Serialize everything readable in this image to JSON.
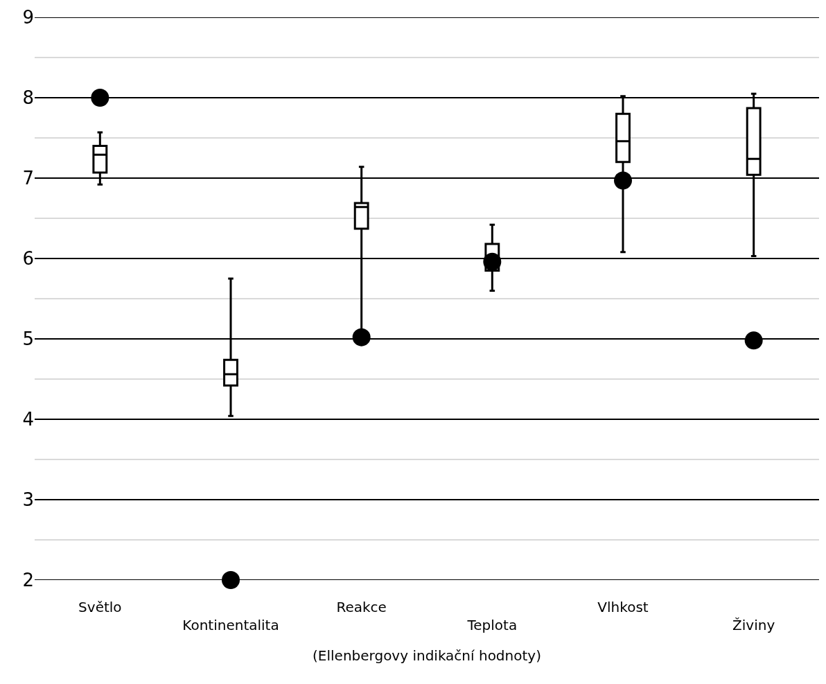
{
  "chart_data": {
    "type": "box",
    "xlabel": "(Ellenbergovy indikační hodnoty)",
    "categories": [
      "Světlo",
      "Kontinentalita",
      "Reakce",
      "Teplota",
      "Vlhkost",
      "Živiny"
    ],
    "series": [
      {
        "color": "#000000",
        "boxes": [
          {
            "low": 6.92,
            "q1": 7.07,
            "median": 7.29,
            "q3": 7.4,
            "high": 7.57
          },
          {
            "low": 4.04,
            "q1": 4.42,
            "median": 4.56,
            "q3": 4.74,
            "high": 5.75
          },
          {
            "low": 5.0,
            "q1": 6.37,
            "median": 6.64,
            "q3": 6.69,
            "high": 7.14
          },
          {
            "low": 5.6,
            "q1": 5.85,
            "median": 5.96,
            "q3": 6.18,
            "high": 6.42
          },
          {
            "low": 6.08,
            "q1": 7.2,
            "median": 7.46,
            "q3": 7.8,
            "high": 8.02
          },
          {
            "low": 6.03,
            "q1": 7.04,
            "median": 7.24,
            "q3": 7.87,
            "high": 8.05
          }
        ]
      },
      {
        "type": "scatter",
        "color": "#000000",
        "marker": "circle",
        "values": [
          8,
          2,
          5.02,
          5.96,
          6.97,
          4.98
        ]
      }
    ],
    "ylim": [
      2,
      9
    ],
    "yticks": [
      2,
      {
        "value": 2.5,
        "label": null
      },
      3,
      {
        "value": 3.5,
        "label": null
      },
      4,
      {
        "value": 4.5,
        "label": null
      },
      5,
      {
        "value": 5.5,
        "label": null
      },
      6,
      {
        "value": 6.5,
        "label": null
      },
      7,
      {
        "value": 7.5,
        "label": null
      },
      8,
      {
        "value": 8.5,
        "label": null
      },
      9
    ],
    "grid": "y"
  }
}
